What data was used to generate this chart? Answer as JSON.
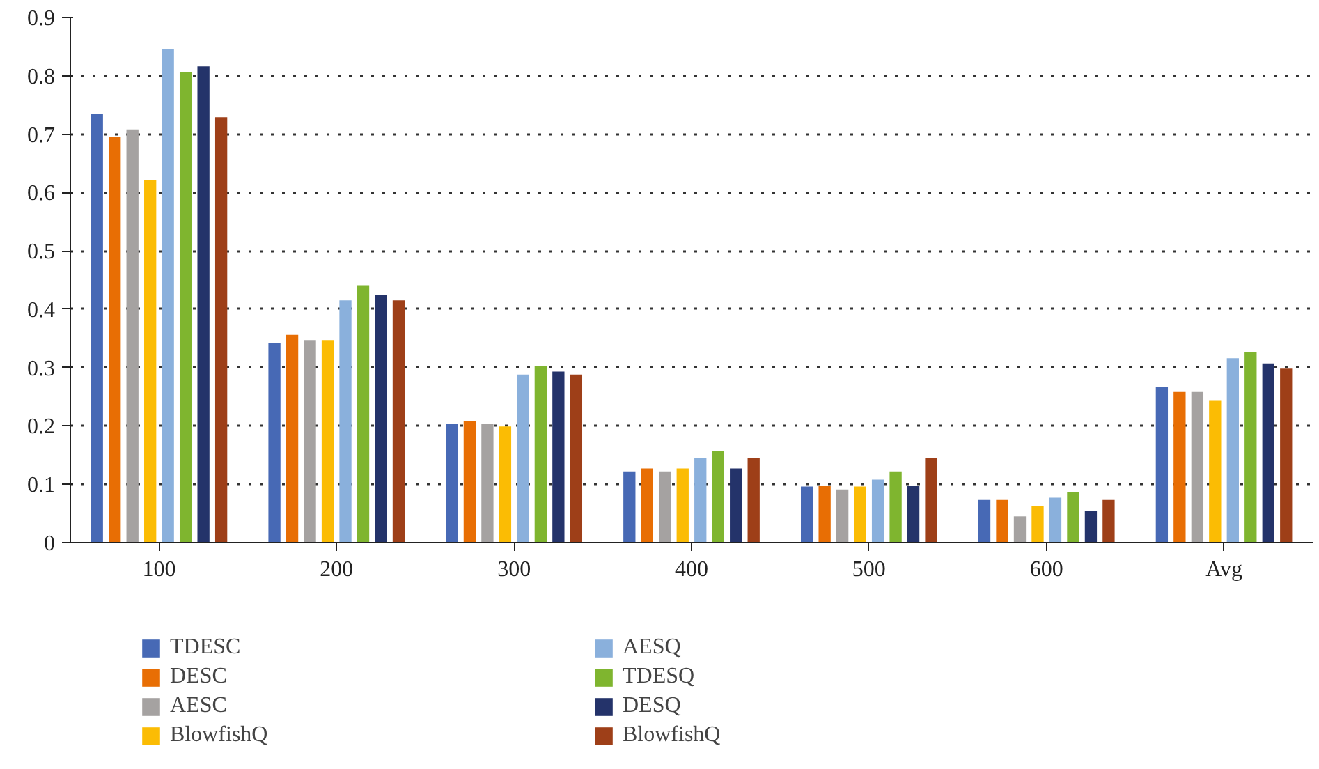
{
  "chart_data": {
    "type": "bar",
    "categories": [
      "100",
      "200",
      "300",
      "400",
      "500",
      "600",
      "Avg"
    ],
    "series": [
      {
        "name": "TDESC",
        "color": "#4769b5",
        "values": [
          0.734,
          0.342,
          0.204,
          0.122,
          0.096,
          0.073,
          0.267
        ]
      },
      {
        "name": "DESC",
        "color": "#e86e04",
        "values": [
          0.695,
          0.356,
          0.209,
          0.127,
          0.098,
          0.073,
          0.258
        ]
      },
      {
        "name": "AESC",
        "color": "#a5a2a1",
        "values": [
          0.708,
          0.347,
          0.204,
          0.122,
          0.091,
          0.045,
          0.258
        ]
      },
      {
        "name": "BlowfishQ",
        "color": "#fbbc04",
        "values": [
          0.621,
          0.347,
          0.199,
          0.127,
          0.096,
          0.063,
          0.244
        ]
      },
      {
        "name": "AESQ",
        "color": "#8ab0dc",
        "values": [
          0.846,
          0.415,
          0.288,
          0.145,
          0.108,
          0.077,
          0.316
        ]
      },
      {
        "name": "TDESQ",
        "color": "#7fb52f",
        "values": [
          0.806,
          0.441,
          0.302,
          0.157,
          0.122,
          0.087,
          0.326
        ]
      },
      {
        "name": "DESQ",
        "color": "#24336a",
        "values": [
          0.816,
          0.424,
          0.293,
          0.127,
          0.098,
          0.054,
          0.307
        ]
      },
      {
        "name": "BlowfishQ",
        "color": "#9e3f18",
        "values": [
          0.729,
          0.415,
          0.288,
          0.145,
          0.145,
          0.073,
          0.298
        ]
      }
    ],
    "ylim": [
      0,
      0.9
    ],
    "yticks": [
      0,
      0.1,
      0.2,
      0.3,
      0.4,
      0.5,
      0.6,
      0.7,
      0.8,
      0.9
    ],
    "grid": "y",
    "legend": "bottom"
  }
}
